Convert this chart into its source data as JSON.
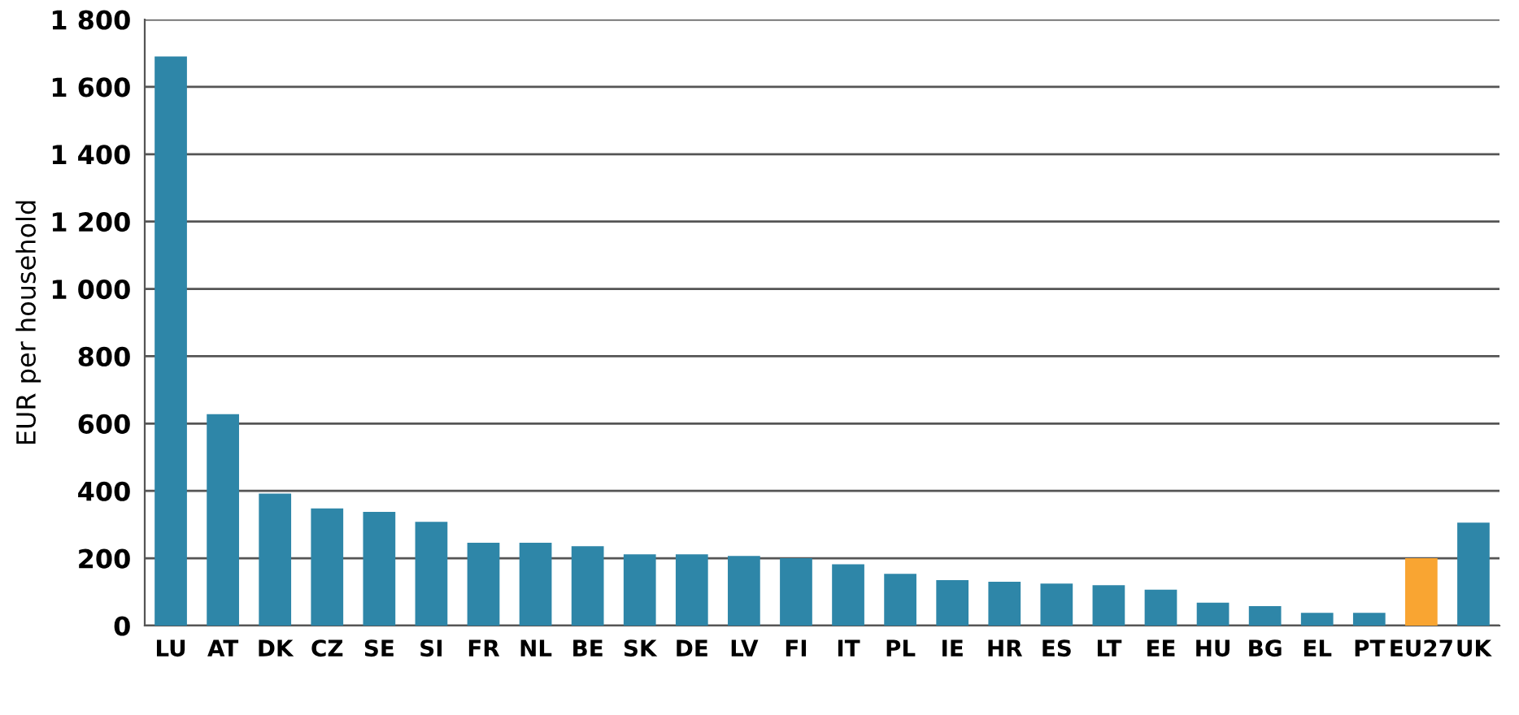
{
  "chart_data": {
    "type": "bar",
    "ylabel": "EUR per household",
    "categories": [
      "LU",
      "AT",
      "DK",
      "CZ",
      "SE",
      "SI",
      "FR",
      "NL",
      "BE",
      "SK",
      "DE",
      "LV",
      "FI",
      "IT",
      "PL",
      "IE",
      "HR",
      "ES",
      "LT",
      "EE",
      "HU",
      "BG",
      "EL",
      "PT",
      "EU27",
      "UK"
    ],
    "values": [
      1690,
      628,
      392,
      348,
      338,
      308,
      246,
      246,
      236,
      212,
      212,
      207,
      200,
      182,
      154,
      135,
      130,
      125,
      120,
      107,
      68,
      58,
      38,
      38,
      200,
      306
    ],
    "colors": [
      "#2e86a8",
      "#2e86a8",
      "#2e86a8",
      "#2e86a8",
      "#2e86a8",
      "#2e86a8",
      "#2e86a8",
      "#2e86a8",
      "#2e86a8",
      "#2e86a8",
      "#2e86a8",
      "#2e86a8",
      "#2e86a8",
      "#2e86a8",
      "#2e86a8",
      "#2e86a8",
      "#2e86a8",
      "#2e86a8",
      "#2e86a8",
      "#2e86a8",
      "#2e86a8",
      "#2e86a8",
      "#2e86a8",
      "#2e86a8",
      "#f9a532",
      "#2e86a8"
    ],
    "ylim": [
      0,
      1800
    ],
    "yticks": [
      0,
      200,
      400,
      600,
      800,
      {
        "value": 1000,
        "label": "1 000"
      },
      {
        "value": 1200,
        "label": "1 200"
      },
      {
        "value": 1400,
        "label": "1 400"
      },
      {
        "value": 1600,
        "label": "1 600"
      },
      {
        "value": 1800,
        "label": "1 800"
      }
    ],
    "grid": "y",
    "legend": false
  }
}
